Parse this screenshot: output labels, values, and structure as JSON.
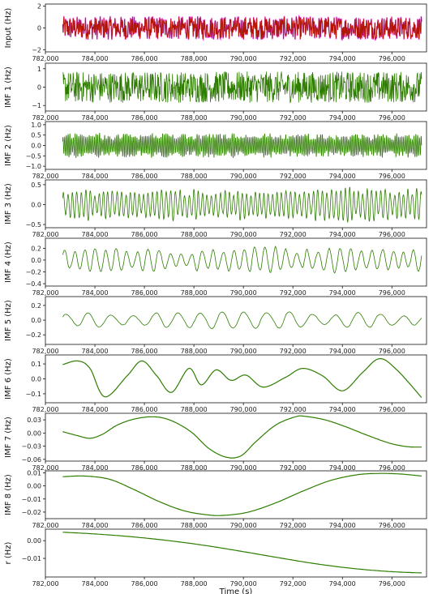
{
  "chart_data": [
    {
      "id": "input",
      "type": "line",
      "ylabel": "Input (Hz)",
      "xlim": [
        782000,
        797400
      ],
      "ylim": [
        -2.2,
        2.2
      ],
      "xticks": [
        782000,
        784000,
        786000,
        788000,
        790000,
        792000,
        794000,
        796000
      ],
      "xtick_labels": [
        "782,000",
        "784,000",
        "786,000",
        "788,000",
        "790,000",
        "792,000",
        "794,000",
        "796,000"
      ],
      "yticks": [
        -2,
        0,
        2
      ],
      "ytick_labels": [
        "−2",
        "0",
        "2"
      ],
      "colors": {
        "original": "#ff00ff",
        "reconstruction": "#cc0000",
        "overlay": "#2e7d00"
      },
      "series_summary": {
        "x_start": 782700,
        "x_end": 797200,
        "amplitude": 1.1,
        "character": "broadband noise"
      }
    },
    {
      "id": "imf1",
      "type": "line",
      "ylabel": "IMF 1 (Hz)",
      "xlim": [
        782000,
        797400
      ],
      "ylim": [
        -1.3,
        1.3
      ],
      "xticks": [
        782000,
        784000,
        786000,
        788000,
        790000,
        792000,
        794000,
        796000
      ],
      "xtick_labels": [
        "782,000",
        "784,000",
        "786,000",
        "788,000",
        "790,000",
        "792,000",
        "794,000",
        "796,000"
      ],
      "yticks": [
        -1,
        0,
        1
      ],
      "ytick_labels": [
        "−1",
        "0",
        "1"
      ],
      "color": "#2e7d00",
      "series_summary": {
        "x_start": 782700,
        "x_end": 797200,
        "amplitude": 0.85,
        "character": "high frequency"
      }
    },
    {
      "id": "imf2",
      "type": "line",
      "ylabel": "IMF 2 (Hz)",
      "xlim": [
        782000,
        797400
      ],
      "ylim": [
        -1.15,
        1.15
      ],
      "xticks": [
        782000,
        784000,
        786000,
        788000,
        790000,
        792000,
        794000,
        796000
      ],
      "xtick_labels": [
        "782,000",
        "784,000",
        "786,000",
        "788,000",
        "790,000",
        "792,000",
        "794,000",
        "796,000"
      ],
      "yticks": [
        -1.0,
        -0.5,
        0.0,
        0.5,
        1.0
      ],
      "ytick_labels": [
        "−1.0",
        "−0.5",
        "0.0",
        "0.5",
        "1.0"
      ],
      "color": "#2e7d00",
      "series_summary": {
        "x_start": 782700,
        "x_end": 797200,
        "amplitude": 0.45,
        "period": 70
      }
    },
    {
      "id": "imf3",
      "type": "line",
      "ylabel": "IMF 3 (Hz)",
      "xlim": [
        782000,
        797400
      ],
      "ylim": [
        -0.58,
        0.62
      ],
      "xticks": [
        782000,
        784000,
        786000,
        788000,
        790000,
        792000,
        794000,
        796000
      ],
      "xtick_labels": [
        "782,000",
        "784,000",
        "786,000",
        "788,000",
        "790,000",
        "792,000",
        "794,000",
        "796,000"
      ],
      "yticks": [
        -0.5,
        0.0,
        0.5
      ],
      "ytick_labels": [
        "−0.5",
        "0.0",
        "0.5"
      ],
      "color": "#2e7d00",
      "series_summary": {
        "x_start": 782700,
        "x_end": 797200,
        "amplitude": 0.32,
        "period": 180
      }
    },
    {
      "id": "imf4",
      "type": "line",
      "ylabel": "IMF 4 (Hz)",
      "xlim": [
        782000,
        797400
      ],
      "ylim": [
        -0.44,
        0.37
      ],
      "xticks": [
        782000,
        784000,
        786000,
        788000,
        790000,
        792000,
        794000,
        796000
      ],
      "xtick_labels": [
        "782,000",
        "784,000",
        "786,000",
        "788,000",
        "790,000",
        "792,000",
        "794,000",
        "796,000"
      ],
      "yticks": [
        -0.4,
        -0.2,
        0.0,
        0.2
      ],
      "ytick_labels": [
        "−0.4",
        "−0.2",
        "0.0",
        "0.2"
      ],
      "color": "#2e7d00",
      "series_summary": {
        "x_start": 782700,
        "x_end": 797200,
        "amplitude": 0.18,
        "period": 420
      }
    },
    {
      "id": "imf5",
      "type": "line",
      "ylabel": "IMF 5 (Hz)",
      "xlim": [
        782000,
        797400
      ],
      "ylim": [
        -0.33,
        0.32
      ],
      "xticks": [
        782000,
        784000,
        786000,
        788000,
        790000,
        792000,
        794000,
        796000
      ],
      "xtick_labels": [
        "782,000",
        "784,000",
        "786,000",
        "788,000",
        "790,000",
        "792,000",
        "794,000",
        "796,000"
      ],
      "yticks": [
        -0.2,
        0.0,
        0.2
      ],
      "ytick_labels": [
        "−0.2",
        "0.0",
        "0.2"
      ],
      "color": "#2e7d00",
      "series_summary": {
        "x_start": 782700,
        "x_end": 797200,
        "amplitude": 0.1,
        "period": 900
      }
    },
    {
      "id": "imf6",
      "type": "line",
      "ylabel": "IMF 6 (Hz)",
      "xlim": [
        782000,
        797400
      ],
      "ylim": [
        -0.16,
        0.16
      ],
      "xticks": [
        782000,
        784000,
        786000,
        788000,
        790000,
        792000,
        794000,
        796000
      ],
      "xtick_labels": [
        "782,000",
        "784,000",
        "786,000",
        "788,000",
        "790,000",
        "792,000",
        "794,000",
        "796,000"
      ],
      "yticks": [
        -0.1,
        0.0,
        0.1
      ],
      "ytick_labels": [
        "−0.1",
        "0.0",
        "0.1"
      ],
      "color": "#2e7d00",
      "points": [
        [
          782700,
          0.095
        ],
        [
          783300,
          0.12
        ],
        [
          783800,
          0.07
        ],
        [
          784400,
          -0.12
        ],
        [
          785300,
          0.02
        ],
        [
          785900,
          0.12
        ],
        [
          786500,
          0.02
        ],
        [
          787100,
          -0.09
        ],
        [
          787800,
          0.07
        ],
        [
          788300,
          -0.04
        ],
        [
          788900,
          0.06
        ],
        [
          789500,
          -0.01
        ],
        [
          790100,
          0.025
        ],
        [
          790800,
          -0.055
        ],
        [
          791700,
          0.01
        ],
        [
          792400,
          0.07
        ],
        [
          793200,
          0.02
        ],
        [
          794000,
          -0.08
        ],
        [
          794800,
          0.04
        ],
        [
          795500,
          0.135
        ],
        [
          796200,
          0.06
        ],
        [
          797200,
          -0.125
        ]
      ]
    },
    {
      "id": "imf7",
      "type": "line",
      "ylabel": "IMF 7 (Hz)",
      "xlim": [
        782000,
        797400
      ],
      "ylim": [
        -0.064,
        0.045
      ],
      "xticks": [
        782000,
        784000,
        786000,
        788000,
        790000,
        792000,
        794000,
        796000
      ],
      "xtick_labels": [
        "782,000",
        "784,000",
        "786,000",
        "788,000",
        "790,000",
        "792,000",
        "794,000",
        "796,000"
      ],
      "yticks": [
        -0.06,
        -0.03,
        0.0,
        0.03
      ],
      "ytick_labels": [
        "−0.06",
        "−0.03",
        "0.00",
        "0.03"
      ],
      "color": "#2e7d00",
      "points": [
        [
          782700,
          0.003
        ],
        [
          783300,
          -0.006
        ],
        [
          783800,
          -0.012
        ],
        [
          784300,
          -0.003
        ],
        [
          784900,
          0.018
        ],
        [
          785600,
          0.032
        ],
        [
          786400,
          0.037
        ],
        [
          787100,
          0.028
        ],
        [
          787900,
          0.002
        ],
        [
          788600,
          -0.035
        ],
        [
          789300,
          -0.055
        ],
        [
          789900,
          -0.052
        ],
        [
          790500,
          -0.02
        ],
        [
          791300,
          0.018
        ],
        [
          792100,
          0.037
        ],
        [
          792500,
          0.038
        ],
        [
          793300,
          0.03
        ],
        [
          794100,
          0.015
        ],
        [
          795000,
          -0.005
        ],
        [
          795900,
          -0.023
        ],
        [
          796600,
          -0.031
        ],
        [
          797200,
          -0.032
        ]
      ]
    },
    {
      "id": "imf8",
      "type": "line",
      "ylabel": "IMF 8 (Hz)",
      "xlim": [
        782000,
        797400
      ],
      "ylim": [
        -0.025,
        0.0115
      ],
      "xticks": [
        782000,
        784000,
        786000,
        788000,
        790000,
        792000,
        794000,
        796000
      ],
      "xtick_labels": [
        "782,000",
        "784,000",
        "786,000",
        "788,000",
        "790,000",
        "792,000",
        "794,000",
        "796,000"
      ],
      "yticks": [
        -0.02,
        -0.01,
        0.0,
        0.01
      ],
      "ytick_labels": [
        "−0.02",
        "−0.01",
        "0.00",
        "0.01"
      ],
      "color": "#2e7d00",
      "points": [
        [
          782700,
          0.007
        ],
        [
          783600,
          0.0075
        ],
        [
          784600,
          0.005
        ],
        [
          785600,
          -0.003
        ],
        [
          786600,
          -0.012
        ],
        [
          787600,
          -0.019
        ],
        [
          788500,
          -0.022
        ],
        [
          789200,
          -0.0225
        ],
        [
          790200,
          -0.02
        ],
        [
          791300,
          -0.013
        ],
        [
          792400,
          -0.004
        ],
        [
          793500,
          0.004
        ],
        [
          794600,
          0.0085
        ],
        [
          795500,
          0.0095
        ],
        [
          796400,
          0.009
        ],
        [
          797200,
          0.0075
        ]
      ]
    },
    {
      "id": "residual",
      "type": "line",
      "ylabel": "r (Hz)",
      "xlabel": "Time (s)",
      "xlim": [
        782000,
        797400
      ],
      "ylim": [
        -0.0205,
        0.0065
      ],
      "xticks": [
        782000,
        784000,
        786000,
        788000,
        790000,
        792000,
        794000,
        796000
      ],
      "xtick_labels": [
        "782,000",
        "784,000",
        "786,000",
        "788,000",
        "790,000",
        "792,000",
        "794,000",
        "796,000"
      ],
      "yticks": [
        -0.01,
        0.0
      ],
      "ytick_labels": [
        "−0.01",
        "0.00"
      ],
      "color": "#2e7d00",
      "points": [
        [
          782700,
          0.0048
        ],
        [
          784000,
          0.0038
        ],
        [
          785500,
          0.0022
        ],
        [
          787000,
          0.0
        ],
        [
          788500,
          -0.0028
        ],
        [
          790000,
          -0.0062
        ],
        [
          791500,
          -0.0098
        ],
        [
          793000,
          -0.0132
        ],
        [
          794500,
          -0.0158
        ],
        [
          796000,
          -0.0175
        ],
        [
          797200,
          -0.0182
        ]
      ]
    }
  ]
}
